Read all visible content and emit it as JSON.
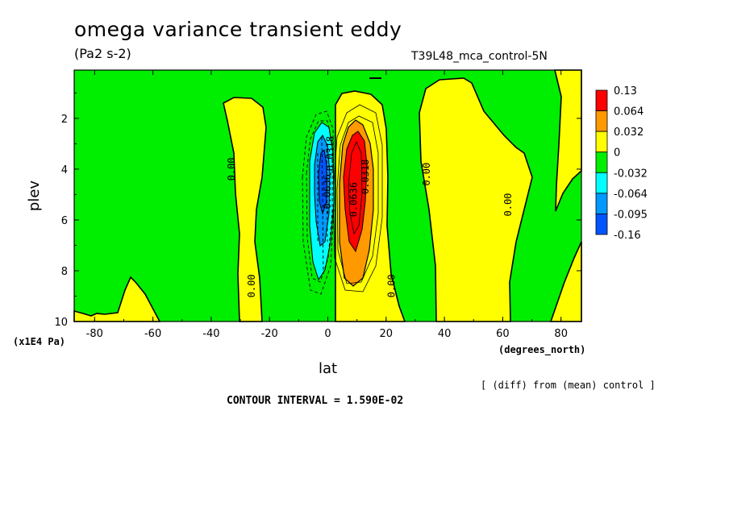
{
  "chart_data": {
    "type": "heatmap",
    "title": "omega variance transient eddy",
    "units": "(Pa2 s-2)",
    "run_label": "T39L48_mca_control-5N",
    "xlabel": "lat",
    "x_units": "(degrees_north)",
    "ylabel": "plev",
    "y_units": "(x1E4 Pa)",
    "note": "[ (diff) from (mean) control ]",
    "contour_interval": "CONTOUR INTERVAL = 1.590E-02",
    "xlim": [
      -87,
      87
    ],
    "ylim": [
      10,
      0.1
    ],
    "y_inverted": true,
    "x_ticks": [
      -80,
      -60,
      -40,
      -20,
      0,
      20,
      40,
      60,
      80
    ],
    "y_ticks": [
      2,
      4,
      6,
      8,
      10
    ],
    "colorbar": {
      "labels": [
        "0.13",
        "0.064",
        "0.032",
        "0",
        "-0.032",
        "-0.064",
        "-0.095",
        "-0.16"
      ],
      "colors": [
        "#ff0000",
        "#ff9900",
        "#ffff00",
        "#00ee00",
        "#00ffff",
        "#0099ff",
        "#0055ff"
      ]
    },
    "contour_labels": [
      {
        "text": "0.00",
        "lat": -32,
        "plev": 4.0
      },
      {
        "text": "0.00",
        "lat": -25,
        "plev": 8.6
      },
      {
        "text": "0.00",
        "lat": 23,
        "plev": 8.6
      },
      {
        "text": "0.00",
        "lat": 35,
        "plev": 4.2
      },
      {
        "text": "0.00",
        "lat": 63,
        "plev": 5.4
      },
      {
        "text": "-0.0318",
        "lat": 2,
        "plev": 3.5
      },
      {
        "text": "-0.0636",
        "lat": 1,
        "plev": 5.0
      },
      {
        "text": "0.0318",
        "lat": 14,
        "plev": 4.3
      },
      {
        "text": "0.0636",
        "lat": 10,
        "plev": 5.2
      }
    ]
  }
}
